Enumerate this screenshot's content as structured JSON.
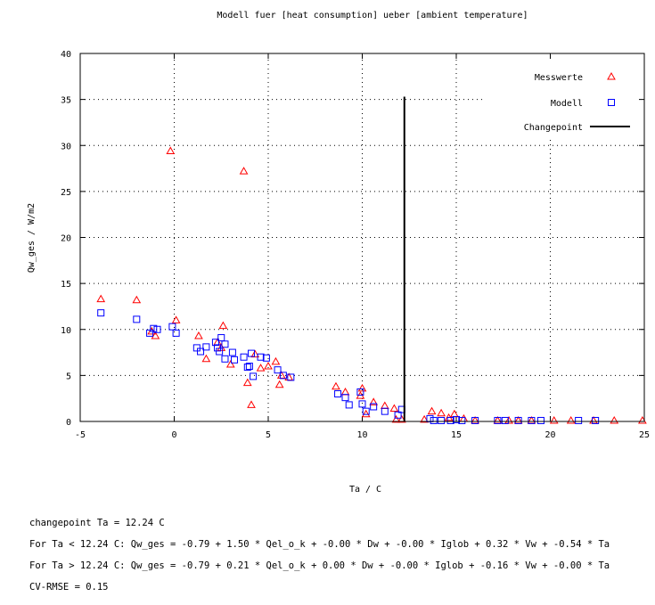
{
  "chart_data": {
    "type": "scatter",
    "title": "Modell fuer [heat consumption] ueber [ambient temperature]",
    "xlabel": "Ta / C",
    "ylabel": "Qw_ges / W/m2",
    "xlim": [
      -5,
      25
    ],
    "ylim": [
      0,
      40
    ],
    "xticks": [
      "-5",
      "0",
      "5",
      "10",
      "15",
      "20",
      "25"
    ],
    "yticks": [
      "0",
      "5",
      "10",
      "15",
      "20",
      "25",
      "30",
      "35",
      "40"
    ],
    "grid": true,
    "legend_position": "top-right",
    "colors": {
      "messwerte": "#ff0000",
      "modell": "#0000ff",
      "changepoint": "#000000"
    },
    "legend": [
      {
        "label": "Messwerte",
        "marker": "triangle"
      },
      {
        "label": "Modell",
        "marker": "square"
      },
      {
        "label": "Changepoint",
        "marker": "line"
      }
    ],
    "changepoint": {
      "x": 12.24,
      "y_top": 35.3
    },
    "series": [
      {
        "name": "Messwerte",
        "marker": "triangle",
        "points": [
          [
            -3.9,
            13.3
          ],
          [
            -2.0,
            13.2
          ],
          [
            -1.2,
            9.8
          ],
          [
            -1.0,
            9.3
          ],
          [
            -0.2,
            29.4
          ],
          [
            0.1,
            11.0
          ],
          [
            1.3,
            9.3
          ],
          [
            1.7,
            6.8
          ],
          [
            2.3,
            8.6
          ],
          [
            2.5,
            8.0
          ],
          [
            2.6,
            10.4
          ],
          [
            3.0,
            6.2
          ],
          [
            3.7,
            27.2
          ],
          [
            3.9,
            4.2
          ],
          [
            4.1,
            1.8
          ],
          [
            4.3,
            7.3
          ],
          [
            4.6,
            5.8
          ],
          [
            5.0,
            6.0
          ],
          [
            5.4,
            6.5
          ],
          [
            5.6,
            4.0
          ],
          [
            5.7,
            5.0
          ],
          [
            6.1,
            4.8
          ],
          [
            8.6,
            3.8
          ],
          [
            9.1,
            3.2
          ],
          [
            9.9,
            2.8
          ],
          [
            10.0,
            3.6
          ],
          [
            10.2,
            0.8
          ],
          [
            10.6,
            2.1
          ],
          [
            11.2,
            1.7
          ],
          [
            11.7,
            1.4
          ],
          [
            11.8,
            0.2
          ],
          [
            12.1,
            0.2
          ],
          [
            13.3,
            0.2
          ],
          [
            13.7,
            1.1
          ],
          [
            14.2,
            0.9
          ],
          [
            14.6,
            0.4
          ],
          [
            14.9,
            0.8
          ],
          [
            15.4,
            0.3
          ],
          [
            16.0,
            0.1
          ],
          [
            17.2,
            0.1
          ],
          [
            17.8,
            0.1
          ],
          [
            18.3,
            0.1
          ],
          [
            19.0,
            0.1
          ],
          [
            20.2,
            0.1
          ],
          [
            21.1,
            0.1
          ],
          [
            22.3,
            0.1
          ],
          [
            23.4,
            0.1
          ],
          [
            24.9,
            0.1
          ]
        ]
      },
      {
        "name": "Modell",
        "marker": "square",
        "points": [
          [
            -3.9,
            11.8
          ],
          [
            -2.0,
            11.1
          ],
          [
            -1.3,
            9.6
          ],
          [
            -1.1,
            10.1
          ],
          [
            -0.9,
            10.0
          ],
          [
            -0.1,
            10.3
          ],
          [
            0.1,
            9.6
          ],
          [
            1.2,
            8.0
          ],
          [
            1.4,
            7.6
          ],
          [
            1.7,
            8.1
          ],
          [
            2.2,
            8.6
          ],
          [
            2.3,
            8.0
          ],
          [
            2.4,
            7.6
          ],
          [
            2.5,
            9.1
          ],
          [
            2.7,
            8.4
          ],
          [
            2.7,
            6.8
          ],
          [
            3.1,
            7.5
          ],
          [
            3.2,
            6.7
          ],
          [
            3.7,
            7.0
          ],
          [
            3.9,
            5.9
          ],
          [
            4.0,
            6.0
          ],
          [
            4.1,
            7.4
          ],
          [
            4.2,
            4.9
          ],
          [
            4.6,
            7.0
          ],
          [
            4.9,
            6.9
          ],
          [
            5.5,
            5.6
          ],
          [
            5.8,
            5.0
          ],
          [
            6.2,
            4.8
          ],
          [
            8.7,
            3.0
          ],
          [
            9.1,
            2.6
          ],
          [
            9.3,
            1.8
          ],
          [
            9.9,
            3.2
          ],
          [
            10.0,
            1.9
          ],
          [
            10.2,
            1.1
          ],
          [
            10.6,
            1.6
          ],
          [
            11.2,
            1.1
          ],
          [
            11.9,
            0.7
          ],
          [
            12.1,
            1.3
          ],
          [
            13.6,
            0.3
          ],
          [
            13.8,
            0.1
          ],
          [
            14.2,
            0.1
          ],
          [
            14.7,
            0.1
          ],
          [
            15.0,
            0.2
          ],
          [
            15.3,
            0.1
          ],
          [
            16.0,
            0.1
          ],
          [
            17.2,
            0.1
          ],
          [
            17.6,
            0.1
          ],
          [
            18.3,
            0.1
          ],
          [
            19.0,
            0.1
          ],
          [
            19.5,
            0.1
          ],
          [
            21.5,
            0.1
          ],
          [
            22.4,
            0.1
          ]
        ]
      }
    ]
  },
  "notes": {
    "line1": "changepoint Ta = 12.24 C",
    "line2": "For Ta < 12.24 C: Qw_ges = -0.79 + 1.50 * Qel_o_k + -0.00 * Dw + -0.00 * Iglob + 0.32 * Vw + -0.54 * Ta",
    "line3": "For Ta > 12.24 C: Qw_ges = -0.79 + 0.21 * Qel_o_k + 0.00 * Dw + -0.00 * Iglob + -0.16 * Vw + -0.00 * Ta",
    "line4": "CV-RMSE = 0.15"
  }
}
